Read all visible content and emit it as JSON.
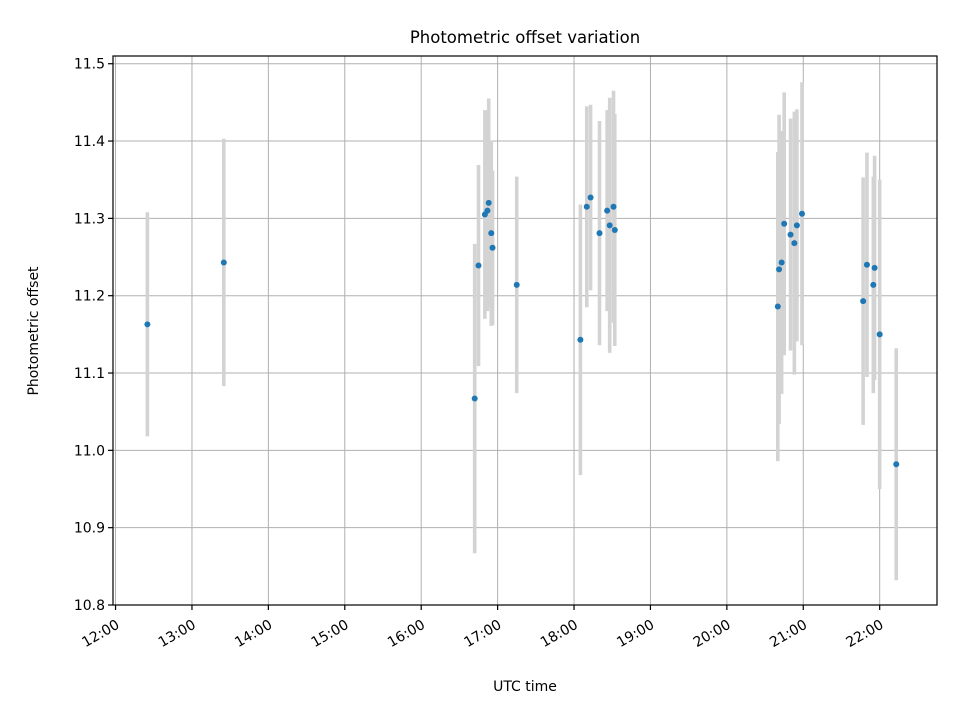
{
  "chart_data": {
    "type": "scatter",
    "title": "Photometric offset variation",
    "xlabel": "UTC time",
    "ylabel": "Photometric offset",
    "grid": true,
    "xlim": [
      "11:58",
      "22:45"
    ],
    "ylim": [
      10.8,
      11.51
    ],
    "x_ticks": [
      "12:00",
      "13:00",
      "14:00",
      "15:00",
      "16:00",
      "17:00",
      "18:00",
      "19:00",
      "20:00",
      "21:00",
      "22:00"
    ],
    "y_ticks": [
      "10.8",
      "10.9",
      "11.0",
      "11.1",
      "11.2",
      "11.3",
      "11.4",
      "11.5"
    ],
    "colors": {
      "point": "#1f77b4",
      "errorbar": "#d3d3d3"
    },
    "series": [
      {
        "points": [
          {
            "x": "12:25",
            "y": 11.163,
            "err": 0.145
          },
          {
            "x": "13:25",
            "y": 11.243,
            "err": 0.16
          },
          {
            "x": "16:42",
            "y": 11.067,
            "err": 0.2
          },
          {
            "x": "16:45",
            "y": 11.239,
            "err": 0.13
          },
          {
            "x": "16:50",
            "y": 11.305,
            "err": 0.135
          },
          {
            "x": "16:52",
            "y": 11.31,
            "err": 0.13
          },
          {
            "x": "16:53",
            "y": 11.32,
            "err": 0.135
          },
          {
            "x": "16:55",
            "y": 11.281,
            "err": 0.12
          },
          {
            "x": "16:56",
            "y": 11.262,
            "err": 0.1
          },
          {
            "x": "17:15",
            "y": 11.214,
            "err": 0.14
          },
          {
            "x": "18:05",
            "y": 11.143,
            "err": 0.175
          },
          {
            "x": "18:10",
            "y": 11.315,
            "err": 0.13
          },
          {
            "x": "18:13",
            "y": 11.327,
            "err": 0.12
          },
          {
            "x": "18:20",
            "y": 11.281,
            "err": 0.145
          },
          {
            "x": "18:26",
            "y": 11.31,
            "err": 0.13
          },
          {
            "x": "18:28",
            "y": 11.291,
            "err": 0.165
          },
          {
            "x": "18:31",
            "y": 11.315,
            "err": 0.15
          },
          {
            "x": "18:32",
            "y": 11.285,
            "err": 0.15
          },
          {
            "x": "20:40",
            "y": 11.186,
            "err": 0.2
          },
          {
            "x": "20:41",
            "y": 11.234,
            "err": 0.2
          },
          {
            "x": "20:43",
            "y": 11.243,
            "err": 0.17
          },
          {
            "x": "20:45",
            "y": 11.293,
            "err": 0.17
          },
          {
            "x": "20:50",
            "y": 11.279,
            "err": 0.15
          },
          {
            "x": "20:53",
            "y": 11.268,
            "err": 0.17
          },
          {
            "x": "20:55",
            "y": 11.291,
            "err": 0.15
          },
          {
            "x": "20:59",
            "y": 11.306,
            "err": 0.17
          },
          {
            "x": "21:47",
            "y": 11.193,
            "err": 0.16
          },
          {
            "x": "21:50",
            "y": 11.24,
            "err": 0.145
          },
          {
            "x": "21:55",
            "y": 11.214,
            "err": 0.14
          },
          {
            "x": "21:56",
            "y": 11.236,
            "err": 0.145
          },
          {
            "x": "22:00",
            "y": 11.15,
            "err": 0.2
          },
          {
            "x": "22:13",
            "y": 10.982,
            "err": 0.15
          }
        ]
      }
    ]
  }
}
